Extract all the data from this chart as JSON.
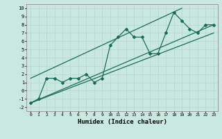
{
  "xlabel": "Humidex (Indice chaleur)",
  "ylabel": "",
  "background_color": "#c8e8e0",
  "grid_color": "#b8d8d0",
  "line_color": "#1a6b5a",
  "xlim": [
    -0.5,
    23.5
  ],
  "ylim": [
    -2.5,
    10.5
  ],
  "xticks": [
    0,
    1,
    2,
    3,
    4,
    5,
    6,
    7,
    8,
    9,
    10,
    11,
    12,
    13,
    14,
    15,
    16,
    17,
    18,
    19,
    20,
    21,
    22,
    23
  ],
  "yticks": [
    -2,
    -1,
    0,
    1,
    2,
    3,
    4,
    5,
    6,
    7,
    8,
    9,
    10
  ],
  "data_line": {
    "x": [
      0,
      1,
      2,
      3,
      4,
      5,
      6,
      7,
      8,
      9,
      10,
      11,
      12,
      13,
      14,
      15,
      16,
      17,
      18,
      19,
      20,
      21,
      22,
      23
    ],
    "y": [
      -1.5,
      -1.0,
      1.5,
      1.5,
      1.0,
      1.5,
      1.5,
      2.0,
      1.0,
      1.5,
      5.5,
      6.5,
      7.5,
      6.5,
      6.5,
      4.5,
      4.5,
      7.0,
      9.5,
      8.5,
      7.5,
      7.0,
      8.0,
      8.0
    ]
  },
  "trend_line": {
    "x": [
      0,
      23
    ],
    "y": [
      -1.5,
      8.0
    ]
  },
  "upper_line": {
    "x": [
      0,
      19
    ],
    "y": [
      1.5,
      10.0
    ]
  },
  "lower_line": {
    "x": [
      0,
      23
    ],
    "y": [
      -1.5,
      7.0
    ]
  }
}
